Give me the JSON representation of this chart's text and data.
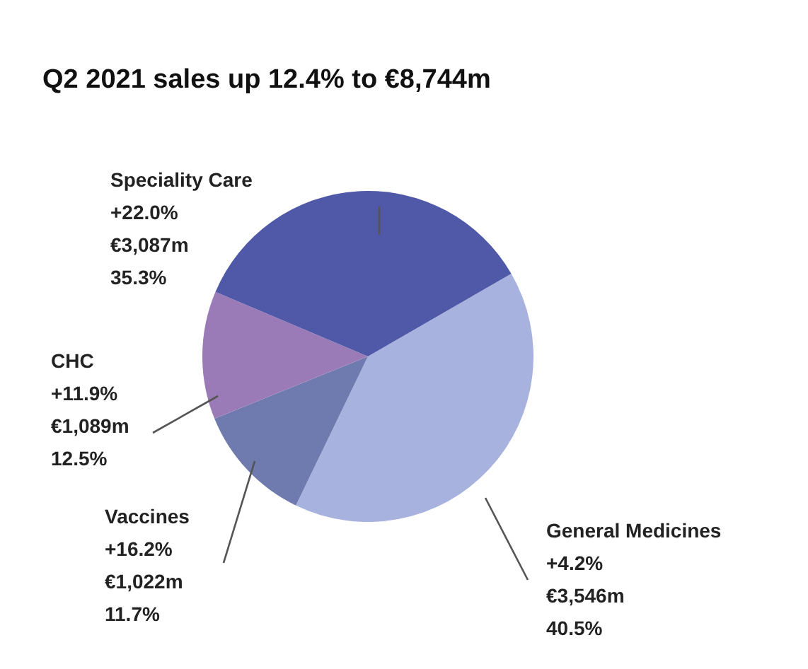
{
  "chart_data": {
    "type": "pie",
    "title": "Q2 2021 sales up 12.4% to €8,744m",
    "categories": [
      "General Medicines",
      "Vaccines",
      "CHC",
      "Speciality Care"
    ],
    "values": [
      40.5,
      11.7,
      12.5,
      35.3
    ],
    "colors": [
      "#a8b2df",
      "#6f7aae",
      "#9b7bb7",
      "#5059a8"
    ],
    "value_labels": [
      "+4.2%\n€3,546m\n40.5%",
      "+16.2%\n€1,022m\n11.7%",
      "+11.9%\n€1,089m\n12.5%",
      "+22.0%\n€3,087m\n35.3%"
    ]
  }
}
